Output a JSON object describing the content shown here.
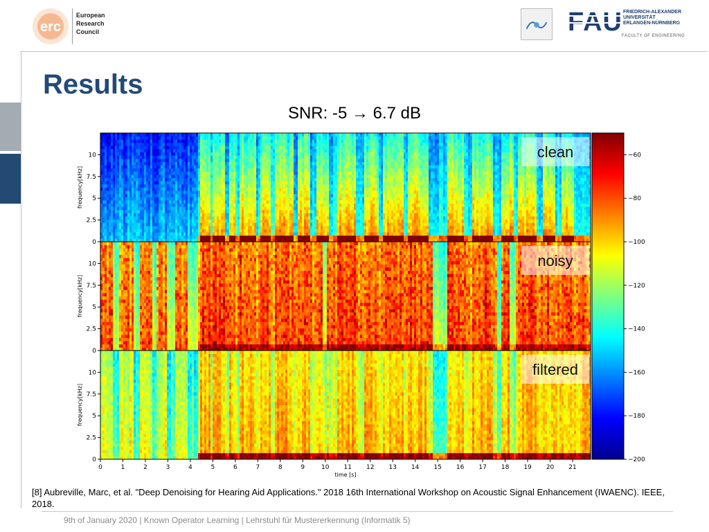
{
  "header": {
    "erc_logo_text": "erc",
    "erc_name_lines": [
      "European",
      "Research",
      "Council"
    ],
    "fau_logo_text": "FAU",
    "fau_name_lines": [
      "FRIEDRICH-ALEXANDER",
      "UNIVERSITÄT",
      "ERLANGEN-NÜRNBERG"
    ],
    "fau_faculty": "FACULTY OF ENGINEERING"
  },
  "slide": {
    "title": "Results",
    "subtitle": "SNR: -5 → 6.7 dB"
  },
  "chart_data": {
    "type": "heatmap",
    "title": "SNR: -5 → 6.7 dB",
    "xlabel": "time [s]",
    "ylabel": "frequency[kHz]",
    "xlim": [
      0,
      21.8
    ],
    "ylim": [
      0,
      12.5
    ],
    "x_ticks": [
      "0",
      "1",
      "2",
      "3",
      "4",
      "5",
      "6",
      "7",
      "8",
      "9",
      "10",
      "11",
      "12",
      "13",
      "14",
      "15",
      "16",
      "17",
      "18",
      "19",
      "20",
      "21"
    ],
    "y_ticks": [
      "0",
      "2.5",
      "5",
      "7.5",
      "10"
    ],
    "panels": [
      {
        "label": "clean"
      },
      {
        "label": "noisy"
      },
      {
        "label": "filtered"
      }
    ],
    "colorbar": {
      "range": [
        -200,
        -50
      ],
      "ticks": [
        "-60",
        "-80",
        "-100",
        "-120",
        "-140",
        "-160",
        "-180",
        "-200"
      ],
      "colormap": "jet"
    }
  },
  "reference": "[8] Aubreville, Marc, et al. \"Deep Denoising for Hearing Aid Applications.\" 2018 16th International Workshop on Acoustic Signal Enhancement (IWAENC). IEEE, 2018.",
  "footer": "9th of January 2020  |  Known Operator Learning  |   Lehrstuhl für Mustererkennung (Informatik 5)",
  "colors": {
    "title": "#234a77",
    "side_bar_light": "#a4acb3",
    "side_bar_dark": "#234a72"
  }
}
